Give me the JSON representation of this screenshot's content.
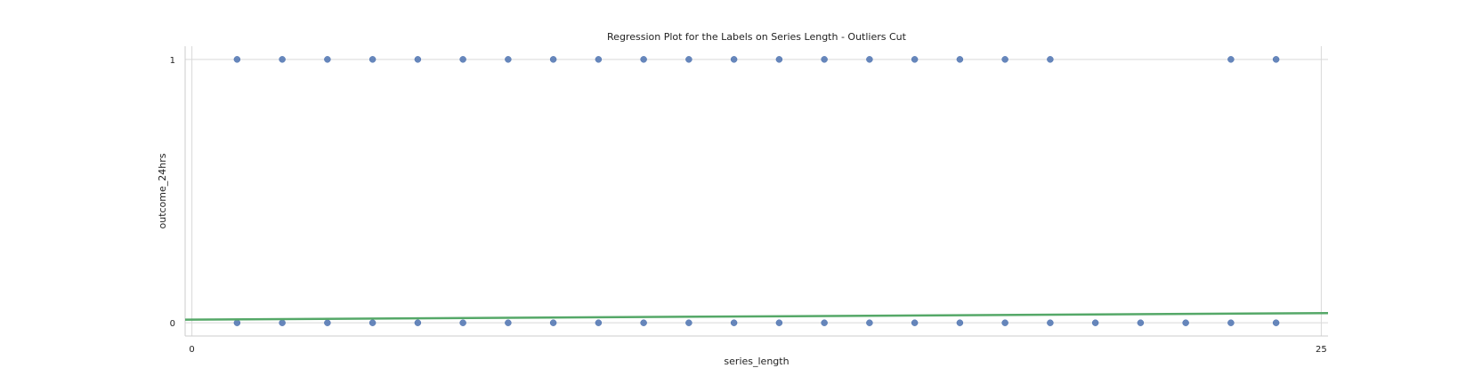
{
  "chart_data": {
    "type": "scatter",
    "title": "Regression Plot for the Labels on Series Length - Outliers Cut",
    "xlabel": "series_length",
    "ylabel": "outcome_24hrs",
    "xlim": [
      -0.15,
      25.15
    ],
    "ylim": [
      -0.05,
      1.05
    ],
    "x_ticks": [
      0,
      25
    ],
    "y_ticks": [
      0,
      1
    ],
    "grid": true,
    "series": [
      {
        "marker": "circle",
        "color": "#4c72b0",
        "points_y1": [
          1,
          2,
          3,
          4,
          5,
          6,
          7,
          8,
          9,
          10,
          11,
          12,
          13,
          14,
          15,
          16,
          17,
          18,
          19,
          23,
          24
        ],
        "points_y0": [
          1,
          2,
          3,
          4,
          5,
          6,
          7,
          8,
          9,
          10,
          11,
          12,
          13,
          14,
          15,
          16,
          17,
          18,
          19,
          20,
          21,
          22,
          23,
          24
        ]
      }
    ],
    "regression_line": {
      "color": "#55a868",
      "x": [
        -0.15,
        25.15
      ],
      "y": [
        0.012,
        0.037
      ]
    }
  }
}
